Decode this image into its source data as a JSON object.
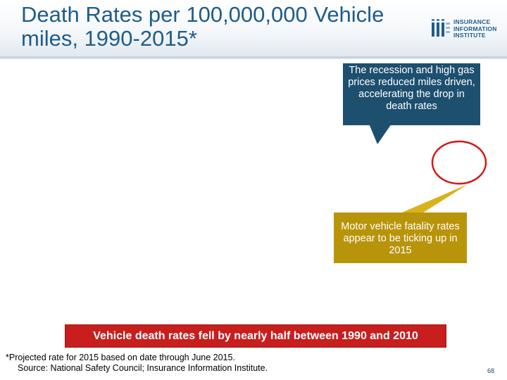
{
  "slide": {
    "title_lines": [
      "Death Rates per 100,000,000 Vehicle",
      "miles, 1990-2015*"
    ],
    "logo": {
      "lines": [
        "INSURANCE",
        "INFORMATION",
        "INSTITUTE"
      ],
      "icon": "iii-logo-icon"
    },
    "callouts": {
      "recession": "The recession and high gas prices reduced miles driven, accelerating the drop in death rates",
      "ticking_up": "Motor vehicle fatality rates appear to be ticking up in 2015",
      "fell_by_half": "Vehicle death rates fell by nearly half between 1990 and 2010"
    },
    "footnote": {
      "line1": "*Projected rate for 2015 based on date through June 2015.",
      "line2": "Source: National Safety Council; Insurance Information Institute."
    },
    "page_number": "68",
    "colors": {
      "title": "#1f5c8a",
      "recession_callout": "#1d4f6f",
      "tick_callout": "#b8940a",
      "fell_callout": "#c81e1e",
      "highlight_circle": "#d01818"
    }
  }
}
